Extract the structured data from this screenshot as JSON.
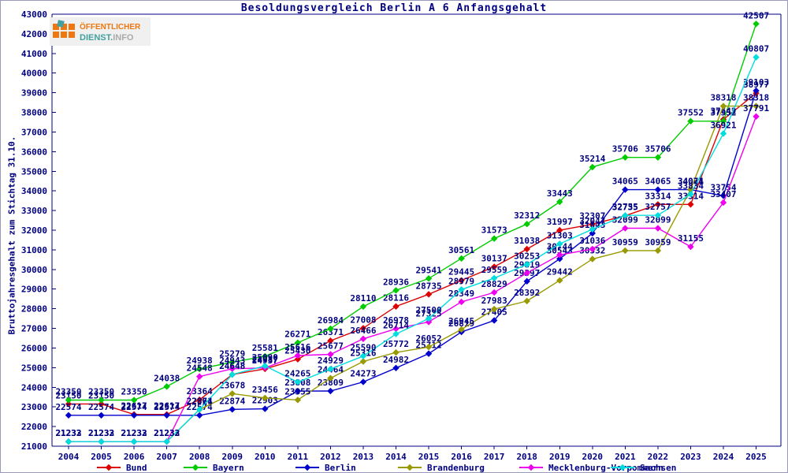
{
  "page": {
    "title": "Besoldungsvergleich Berlin A 6 Anfangsgehalt"
  },
  "logo": {
    "line1": "ÖFFENTLICHER",
    "line2_part1": "DIENST.",
    "line2_part2": "INFO"
  },
  "axis": {
    "ylabel": "Bruttojahresgehalt zum Stichtag 31.10."
  },
  "chart_data": {
    "type": "line",
    "title": "Besoldungsvergleich Berlin A 6 Anfangsgehalt",
    "xlabel": "",
    "ylabel": "Bruttojahresgehalt zum Stichtag 31.10.",
    "ylim": [
      21000,
      43000
    ],
    "ystep": 1000,
    "grid": false,
    "legend_position": "bottom",
    "x": [
      2004,
      2005,
      2006,
      2007,
      2008,
      2009,
      2010,
      2011,
      2012,
      2013,
      2014,
      2015,
      2016,
      2017,
      2018,
      2019,
      2020,
      2021,
      2022,
      2023,
      2024,
      2025
    ],
    "series": [
      {
        "name": "Bund",
        "color": "#dd0000",
        "values": [
          23150,
          23150,
          22617,
          22617,
          23364,
          24648,
          24937,
          25430,
          26371,
          27008,
          28116,
          28735,
          29445,
          30137,
          31038,
          31997,
          32307,
          32735,
          33314,
          33314,
          37642,
          38977
        ]
      },
      {
        "name": "Bayern",
        "color": "#00cc00",
        "values": [
          23350,
          23350,
          23350,
          24038,
          24938,
          25279,
          25581,
          26271,
          26984,
          28110,
          28936,
          29541,
          30561,
          31573,
          32312,
          33443,
          35214,
          35706,
          35706,
          37552,
          37552,
          42507
        ]
      },
      {
        "name": "Berlin",
        "color": "#0000cc",
        "values": [
          22574,
          22574,
          22574,
          22574,
          22574,
          22874,
          22903,
          23808,
          23809,
          24273,
          24982,
          25712,
          26819,
          27405,
          29397,
          30543,
          31843,
          34065,
          34065,
          34064,
          33754,
          39103
        ]
      },
      {
        "name": "Brandenburg",
        "color": "#999900",
        "values": [
          21232,
          21232,
          21232,
          21232,
          22861,
          23678,
          23456,
          23355,
          24464,
          25316,
          25772,
          26052,
          26945,
          27983,
          28392,
          29442,
          30532,
          30959,
          30959,
          34071,
          38318,
          38318
        ]
      },
      {
        "name": "Mecklenburg-Vorpommern",
        "color": "#ee00ee",
        "values": [
          21232,
          21232,
          21232,
          21232,
          24548,
          24943,
          24987,
          25616,
          25677,
          26466,
          26978,
          27325,
          28349,
          28829,
          29819,
          30744,
          31036,
          32099,
          32099,
          31155,
          33407,
          37791
        ]
      },
      {
        "name": "Sachsen",
        "color": "#00dddd",
        "values": [
          21233,
          21233,
          21233,
          21233,
          22874,
          24648,
          25090,
          24265,
          24929,
          25590,
          26714,
          27500,
          28979,
          29559,
          30253,
          31303,
          32047,
          32755,
          32757,
          33834,
          36921,
          40807
        ]
      }
    ],
    "colors": {
      "axis": "#000080",
      "label_text": "#000080",
      "background": "#ffffff"
    }
  }
}
